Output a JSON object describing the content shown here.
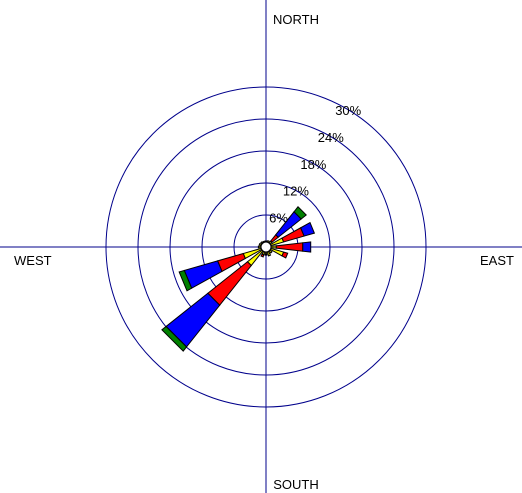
{
  "chart_data": {
    "type": "wind-rose",
    "direction_labels": {
      "north": "NORTH",
      "east": "EAST",
      "south": "SOUTH",
      "west": "WEST"
    },
    "ring_values": [
      6,
      12,
      18,
      24,
      30
    ],
    "ring_labels": [
      "6%",
      "12%",
      "18%",
      "24%",
      "30%"
    ],
    "speed_class_colors": [
      "#ffff00",
      "#ff0000",
      "#0000ff",
      "#008000"
    ],
    "sectors": [
      {
        "direction_deg": 0,
        "segments": [
          0.2,
          0,
          0,
          0
        ]
      },
      {
        "direction_deg": 22.5,
        "segments": [
          0.3,
          0,
          0,
          0
        ]
      },
      {
        "direction_deg": 45,
        "segments": [
          0.5,
          1.5,
          5.5,
          1.2
        ]
      },
      {
        "direction_deg": 67.5,
        "segments": [
          2.5,
          4.0,
          2.0,
          0
        ]
      },
      {
        "direction_deg": 90,
        "segments": [
          1.0,
          5.0,
          1.5,
          0
        ]
      },
      {
        "direction_deg": 112.5,
        "segments": [
          2.5,
          0.8,
          0,
          0
        ]
      },
      {
        "direction_deg": 135,
        "segments": [
          0.5,
          0,
          0,
          0
        ]
      },
      {
        "direction_deg": 157.5,
        "segments": [
          0.8,
          0,
          0,
          0
        ]
      },
      {
        "direction_deg": 180,
        "segments": [
          0.4,
          0.2,
          0,
          0
        ]
      },
      {
        "direction_deg": 202.5,
        "segments": [
          0.6,
          0.4,
          0,
          0
        ]
      },
      {
        "direction_deg": 225,
        "segments": [
          3.5,
          9.5,
          10.0,
          1.0
        ]
      },
      {
        "direction_deg": 247.5,
        "segments": [
          3.5,
          5.0,
          6.5,
          1.0
        ]
      },
      {
        "direction_deg": 270,
        "segments": [
          0.5,
          0,
          0,
          0
        ]
      },
      {
        "direction_deg": 292.5,
        "segments": [
          0.4,
          0,
          0,
          0
        ]
      },
      {
        "direction_deg": 315,
        "segments": [
          0.3,
          0,
          0,
          0
        ]
      },
      {
        "direction_deg": 337.5,
        "segments": [
          0.2,
          0,
          0,
          0
        ]
      }
    ],
    "grid": true
  }
}
